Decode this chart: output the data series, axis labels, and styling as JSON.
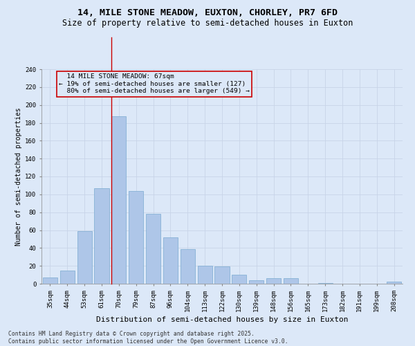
{
  "title": "14, MILE STONE MEADOW, EUXTON, CHORLEY, PR7 6FD",
  "subtitle": "Size of property relative to semi-detached houses in Euxton",
  "xlabel": "Distribution of semi-detached houses by size in Euxton",
  "ylabel": "Number of semi-detached properties",
  "categories": [
    "35sqm",
    "44sqm",
    "53sqm",
    "61sqm",
    "70sqm",
    "79sqm",
    "87sqm",
    "96sqm",
    "104sqm",
    "113sqm",
    "122sqm",
    "130sqm",
    "139sqm",
    "148sqm",
    "156sqm",
    "165sqm",
    "173sqm",
    "182sqm",
    "191sqm",
    "199sqm",
    "208sqm"
  ],
  "values": [
    7,
    15,
    59,
    107,
    187,
    104,
    78,
    52,
    39,
    20,
    19,
    10,
    4,
    6,
    6,
    0,
    1,
    0,
    0,
    0,
    2
  ],
  "bar_color": "#aec6e8",
  "bar_edge_color": "#7aaad0",
  "property_line_index": 4,
  "property_sqm": 67,
  "property_label": "14 MILE STONE MEADOW: 67sqm",
  "pct_smaller": 19,
  "pct_larger": 80,
  "n_smaller": 127,
  "n_larger": 549,
  "annotation_box_color": "#cc0000",
  "grid_color": "#c8d4e8",
  "background_color": "#dce8f8",
  "ylim": [
    0,
    240
  ],
  "yticks": [
    0,
    20,
    40,
    60,
    80,
    100,
    120,
    140,
    160,
    180,
    200,
    220,
    240
  ],
  "footer": "Contains HM Land Registry data © Crown copyright and database right 2025.\nContains public sector information licensed under the Open Government Licence v3.0.",
  "title_fontsize": 9.5,
  "subtitle_fontsize": 8.5,
  "xlabel_fontsize": 8,
  "ylabel_fontsize": 7,
  "tick_fontsize": 6.5,
  "annotation_fontsize": 6.8,
  "footer_fontsize": 5.8
}
